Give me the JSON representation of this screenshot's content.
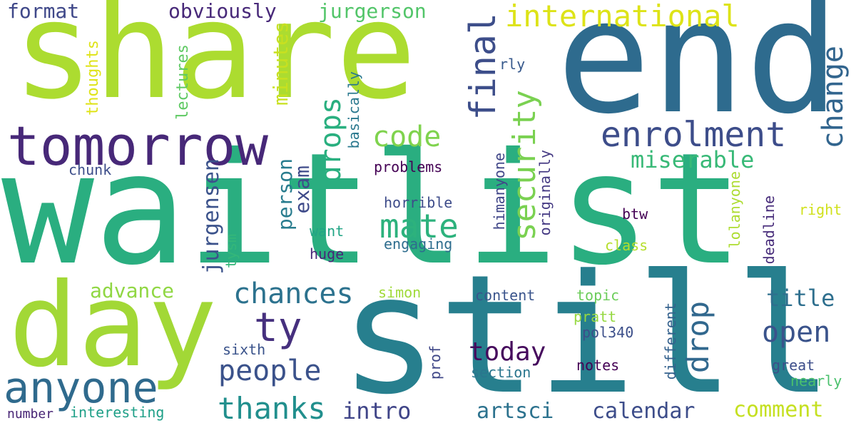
{
  "words": [
    {
      "text": "waitlist",
      "color": "#2aae80"
    },
    {
      "text": "share",
      "color": "#acdc30"
    },
    {
      "text": "end",
      "color": "#2e6b8e"
    },
    {
      "text": "still",
      "color": "#277f8e"
    },
    {
      "text": "day",
      "color": "#a2d836"
    },
    {
      "text": "tomorrow",
      "color": "#472878"
    },
    {
      "text": "anyone",
      "color": "#2f6a8d"
    },
    {
      "text": "enrolment",
      "color": "#3d4d8a"
    },
    {
      "text": "international",
      "color": "#dde318"
    },
    {
      "text": "final",
      "color": "#3d4e8a"
    },
    {
      "text": "change",
      "color": "#32658e"
    },
    {
      "text": "security",
      "color": "#7ad151"
    },
    {
      "text": "code",
      "color": "#7fd34e"
    },
    {
      "text": "mate",
      "color": "#2db27d"
    },
    {
      "text": "drops",
      "color": "#29af7f"
    },
    {
      "text": "chances",
      "color": "#2c728e"
    },
    {
      "text": "people",
      "color": "#3b528b"
    },
    {
      "text": "thanks",
      "color": "#218f8d"
    },
    {
      "text": "ty",
      "color": "#46307e"
    },
    {
      "text": "today",
      "color": "#460a5d"
    },
    {
      "text": "drop",
      "color": "#31688e"
    },
    {
      "text": "open",
      "color": "#3a538b"
    },
    {
      "text": "title",
      "color": "#2e6f8e"
    },
    {
      "text": "miserable",
      "color": "#38b977"
    },
    {
      "text": "format",
      "color": "#3f4889"
    },
    {
      "text": "obviously",
      "color": "#482979"
    },
    {
      "text": "jurgerson",
      "color": "#52c569"
    },
    {
      "text": "minutes",
      "color": "#c8e020"
    },
    {
      "text": "jurgensen",
      "color": "#3b528b"
    },
    {
      "text": "person",
      "color": "#287c8e"
    },
    {
      "text": "exam",
      "color": "#3e4a89"
    },
    {
      "text": "advance",
      "color": "#90d743"
    },
    {
      "text": "intro",
      "color": "#404588"
    },
    {
      "text": "artsci",
      "color": "#2c728e"
    },
    {
      "text": "calendar",
      "color": "#3d4d8a"
    },
    {
      "text": "comment",
      "color": "#c5e021"
    },
    {
      "text": "thoughts",
      "color": "#dfe318"
    },
    {
      "text": "lectures",
      "color": "#5ec962"
    },
    {
      "text": "basically",
      "color": "#2a788e"
    },
    {
      "text": "rly",
      "color": "#37598c"
    },
    {
      "text": "chunk",
      "color": "#3d4e8a"
    },
    {
      "text": "problems",
      "color": "#440154"
    },
    {
      "text": "horrible",
      "color": "#3e4c8a"
    },
    {
      "text": "engaging",
      "color": "#2e6d8e"
    },
    {
      "text": "want",
      "color": "#21a585"
    },
    {
      "text": "huge",
      "color": "#472777"
    },
    {
      "text": "tysm",
      "color": "#35b779"
    },
    {
      "text": "himanyone",
      "color": "#404688"
    },
    {
      "text": "originally",
      "color": "#443983"
    },
    {
      "text": "btw",
      "color": "#440154"
    },
    {
      "text": "class",
      "color": "#b5de2b"
    },
    {
      "text": "lolanyone",
      "color": "#addc30"
    },
    {
      "text": "deadline",
      "color": "#472c7a"
    },
    {
      "text": "right",
      "color": "#d0e11c"
    },
    {
      "text": "simon",
      "color": "#a0da39"
    },
    {
      "text": "content",
      "color": "#3a548c"
    },
    {
      "text": "topic",
      "color": "#6ccd5a"
    },
    {
      "text": "pratt",
      "color": "#95d840"
    },
    {
      "text": "pol340",
      "color": "#3c4f8a"
    },
    {
      "text": "different",
      "color": "#34618d"
    },
    {
      "text": "sixth",
      "color": "#3a538b"
    },
    {
      "text": "prof",
      "color": "#3f4788"
    },
    {
      "text": "section",
      "color": "#2a768e"
    },
    {
      "text": "notes",
      "color": "#440154"
    },
    {
      "text": "great",
      "color": "#3d4e8a"
    },
    {
      "text": "nearly",
      "color": "#4ac16d"
    },
    {
      "text": "number",
      "color": "#482575"
    },
    {
      "text": "interesting",
      "color": "#1fa088"
    }
  ]
}
